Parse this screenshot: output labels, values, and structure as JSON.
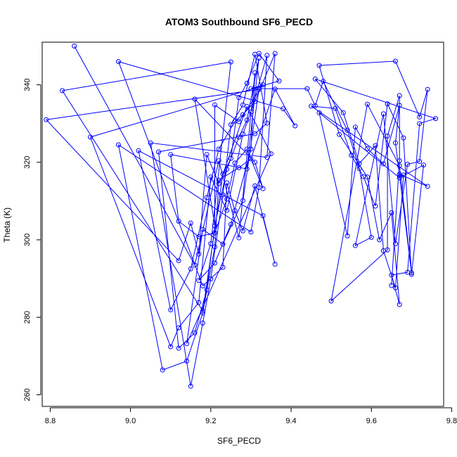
{
  "chart_data": {
    "type": "line",
    "title": "ATOM3 Southbound SF6_PECD",
    "xlabel": "SF6_PECD",
    "ylabel": "Theta (K)",
    "xlim": [
      8.78,
      9.78
    ],
    "ylim": [
      257,
      351
    ],
    "xticks": [
      8.8,
      9.0,
      9.2,
      9.4,
      9.6,
      9.8
    ],
    "xtick_labels": [
      "8.8",
      "9.0",
      "9.2",
      "9.4",
      "9.6",
      "9.8"
    ],
    "yticks": [
      260,
      280,
      300,
      320,
      340
    ],
    "ytick_labels": [
      "260",
      "280",
      "300",
      "320",
      "340"
    ],
    "grid": false,
    "marker": "open-circle",
    "colors": {
      "series": "#0000ff",
      "axes": "#000000",
      "background": "#ffffff"
    },
    "series": [
      {
        "points": [
          [
            8.86,
            350.0
          ],
          [
            9.16,
            293.5
          ],
          [
            9.22,
            320.4
          ],
          [
            9.27,
            300.5
          ],
          [
            9.31,
            343.1
          ],
          [
            9.3,
            323.4
          ],
          [
            9.25,
            304.0
          ],
          [
            9.21,
            294.0
          ],
          [
            9.17,
            289.5
          ],
          [
            9.2,
            299.0
          ],
          [
            9.25,
            345.9
          ],
          [
            8.83,
            338.5
          ],
          [
            9.18,
            281.6
          ],
          [
            9.23,
            317.0
          ],
          [
            9.29,
            334.4
          ],
          [
            9.35,
            322.2
          ],
          [
            9.14,
            273.2
          ],
          [
            9.18,
            302.7
          ],
          [
            9.23,
            298.9
          ],
          [
            9.28,
            310.1
          ],
          [
            9.32,
            338.8
          ],
          [
            8.79,
            331.0
          ],
          [
            9.12,
            294.6
          ],
          [
            9.15,
            304.3
          ],
          [
            9.17,
            296.3
          ],
          [
            9.19,
            322.0
          ],
          [
            9.22,
            314.5
          ],
          [
            9.25,
            321.0
          ],
          [
            9.27,
            336.7
          ],
          [
            9.29,
            340.4
          ],
          [
            9.32,
            348.1
          ],
          [
            9.37,
            341.0
          ],
          [
            8.9,
            326.5
          ],
          [
            9.1,
            272.4
          ],
          [
            9.12,
            277.3
          ],
          [
            9.17,
            283.8
          ],
          [
            9.2,
            316.2
          ],
          [
            9.24,
            307.6
          ],
          [
            9.28,
            327.3
          ],
          [
            9.3,
            333.0
          ],
          [
            9.34,
            347.6
          ],
          [
            9.32,
            313.5
          ],
          [
            9.3,
            302.0
          ],
          [
            8.97,
            324.5
          ],
          [
            9.08,
            266.4
          ],
          [
            9.14,
            268.7
          ],
          [
            9.18,
            281.1
          ],
          [
            9.21,
            298.2
          ],
          [
            9.22,
            315.4
          ],
          [
            9.27,
            318.6
          ],
          [
            9.3,
            320.9
          ],
          [
            9.36,
            338.9
          ],
          [
            9.41,
            329.4
          ],
          [
            9.38,
            333.8
          ],
          [
            8.97,
            346.0
          ],
          [
            9.18,
            288.1
          ],
          [
            9.23,
            292.9
          ],
          [
            9.24,
            314.7
          ],
          [
            9.26,
            307.5
          ],
          [
            9.28,
            302.3
          ],
          [
            9.31,
            313.9
          ],
          [
            9.36,
            293.7
          ],
          [
            9.33,
            306.2
          ],
          [
            9.02,
            323.0
          ],
          [
            9.1,
            281.9
          ],
          [
            9.15,
            292.5
          ],
          [
            9.19,
            310.9
          ],
          [
            9.22,
            323.4
          ],
          [
            9.26,
            330.6
          ],
          [
            9.28,
            332.3
          ],
          [
            9.31,
            335.7
          ],
          [
            9.36,
            348.1
          ],
          [
            9.34,
            321.3
          ],
          [
            9.05,
            325.0
          ],
          [
            9.15,
            262.2
          ],
          [
            9.18,
            278.5
          ],
          [
            9.2,
            289.9
          ],
          [
            9.23,
            311.6
          ],
          [
            9.25,
            329.7
          ],
          [
            9.28,
            334.8
          ],
          [
            9.31,
            347.9
          ],
          [
            9.34,
            330.1
          ],
          [
            9.31,
            327.4
          ],
          [
            9.07,
            322.7
          ],
          [
            9.12,
            272.0
          ],
          [
            9.16,
            276.0
          ],
          [
            9.19,
            287.1
          ],
          [
            9.21,
            303.6
          ],
          [
            9.24,
            318.2
          ],
          [
            9.27,
            326.5
          ],
          [
            9.29,
            330.9
          ],
          [
            9.32,
            346.9
          ],
          [
            9.29,
            318.3
          ],
          [
            9.1,
            322.0
          ],
          [
            9.12,
            304.8
          ],
          [
            9.17,
            300.8
          ],
          [
            9.21,
            301.8
          ],
          [
            9.24,
            310.5
          ],
          [
            9.26,
            319.8
          ],
          [
            9.29,
            323.4
          ],
          [
            9.33,
            313.2
          ],
          [
            9.31,
            320.0
          ],
          [
            9.16,
            336.3
          ],
          [
            9.21,
            303.6
          ],
          [
            9.21,
            334.8
          ],
          [
            9.27,
            330.5
          ],
          [
            9.33,
            340.0
          ],
          [
            9.3,
            339.0
          ],
          [
            9.44,
            339.0
          ],
          [
            9.46,
            334.6
          ],
          [
            9.48,
            340.9
          ],
          [
            9.54,
            328.3
          ],
          [
            9.57,
            318.4
          ],
          [
            9.6,
            300.6
          ],
          [
            9.56,
            298.5
          ],
          [
            9.63,
            332.5
          ],
          [
            9.66,
            299.0
          ],
          [
            9.69,
            319.5
          ],
          [
            9.72,
            320.2
          ],
          [
            9.74,
            338.8
          ],
          [
            9.72,
            331.7
          ],
          [
            9.66,
            346.1
          ],
          [
            9.47,
            345.0
          ],
          [
            9.52,
            327.2
          ],
          [
            9.59,
            316.2
          ],
          [
            9.62,
            300.0
          ],
          [
            9.65,
            307.0
          ],
          [
            9.67,
            283.3
          ],
          [
            9.65,
            290.9
          ],
          [
            9.69,
            291.6
          ],
          [
            9.72,
            330.0
          ],
          [
            9.76,
            331.3
          ],
          [
            9.46,
            341.5
          ],
          [
            9.53,
            332.8
          ],
          [
            9.57,
            319.7
          ],
          [
            9.61,
            324.3
          ],
          [
            9.63,
            297.2
          ],
          [
            9.66,
            287.6
          ],
          [
            9.68,
            316.7
          ],
          [
            9.67,
            316.9
          ],
          [
            9.74,
            313.8
          ],
          [
            9.45,
            334.5
          ],
          [
            9.51,
            333.9
          ],
          [
            9.55,
            321.8
          ],
          [
            9.58,
            316.3
          ],
          [
            9.61,
            308.7
          ],
          [
            9.64,
            335.1
          ],
          [
            9.68,
            326.3
          ],
          [
            9.7,
            291.1
          ],
          [
            9.73,
            319.3
          ],
          [
            9.67,
            316.0
          ],
          [
            9.47,
            332.8
          ],
          [
            9.54,
            301.0
          ],
          [
            9.56,
            329.1
          ],
          [
            9.59,
            323.5
          ],
          [
            9.63,
            319.6
          ],
          [
            9.67,
            334.7
          ],
          [
            9.66,
            325.0
          ],
          [
            9.7,
            291.5
          ],
          [
            9.67,
            319.1
          ],
          [
            9.59,
            335.0
          ],
          [
            9.5,
            284.2
          ],
          [
            9.64,
            297.4
          ],
          [
            9.64,
            326.8
          ],
          [
            9.67,
            337.2
          ],
          [
            9.67,
            320.4
          ],
          [
            9.65,
            288.2
          ]
        ]
      }
    ]
  }
}
